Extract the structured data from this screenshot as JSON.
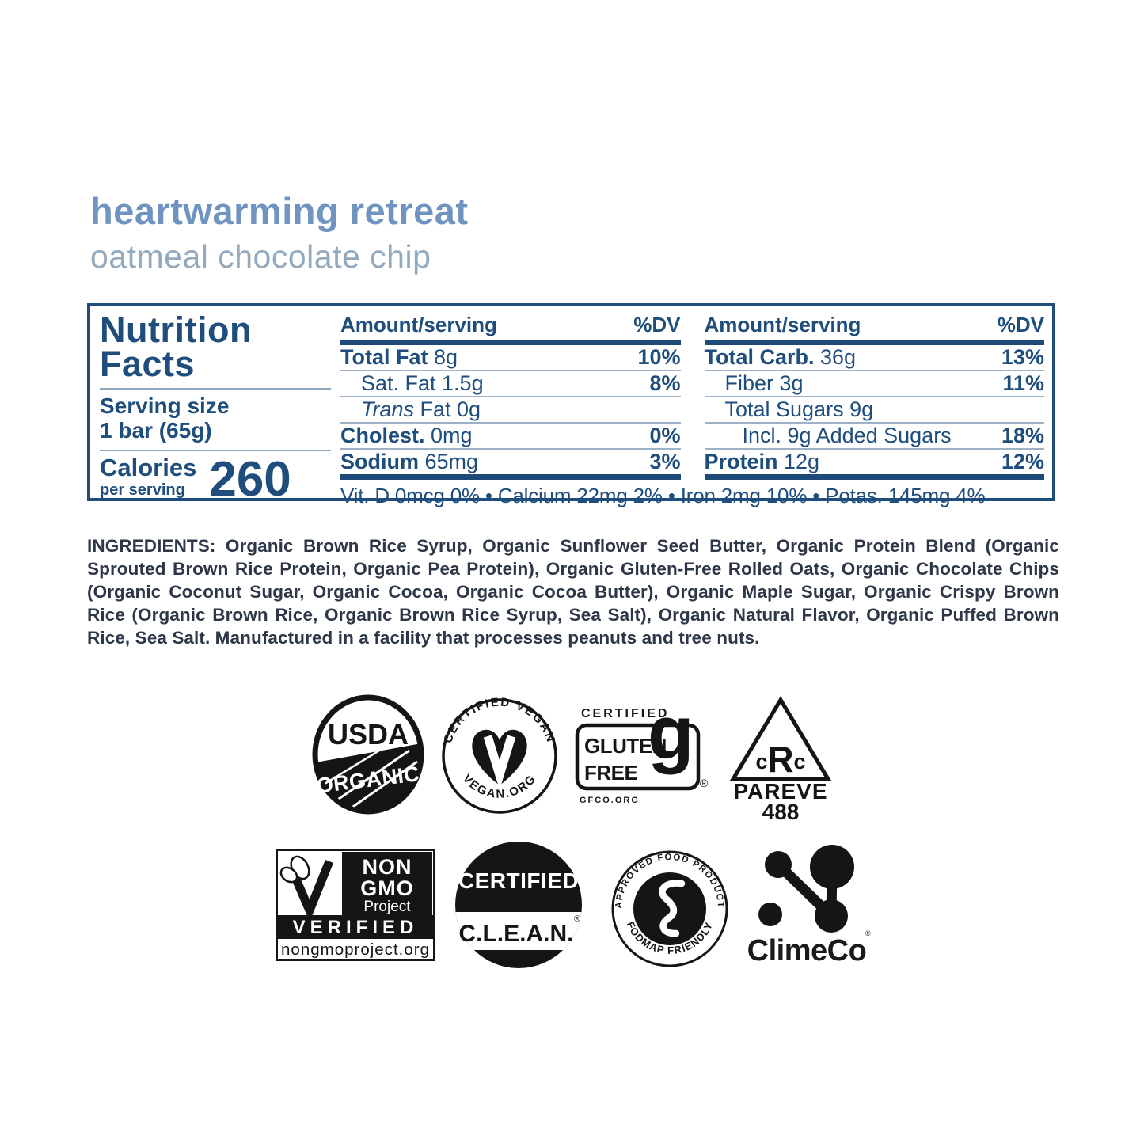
{
  "header": {
    "title": "heartwarming retreat",
    "subtitle": "oatmeal chocolate chip"
  },
  "colors": {
    "panel_blue": "#1f4e7d",
    "title_blue": "#6f94c1",
    "subtitle_blue": "#93a9bd",
    "ingredients_ink": "#2d3747",
    "badge_black": "#151515"
  },
  "nutrition_facts": {
    "panel_title_line1": "Nutrition",
    "panel_title_line2": "Facts",
    "serving_size_label": "Serving size",
    "serving_size_value": "1 bar (65g)",
    "calories_label": "Calories",
    "calories_sublabel": "per serving",
    "calories_value": "260",
    "columns": [
      {
        "header_amount": "Amount/serving",
        "header_dv": "%DV",
        "rows": [
          {
            "parts": [
              {
                "t": "Total Fat",
                "b": true
              },
              {
                "t": " 8g"
              }
            ],
            "dv": "10%",
            "indent": 0
          },
          {
            "parts": [
              {
                "t": "Sat. Fat 1.5g"
              }
            ],
            "dv": "8%",
            "indent": 1
          },
          {
            "parts": [
              {
                "t": "Trans",
                "i": true
              },
              {
                "t": " Fat 0g"
              }
            ],
            "dv": "",
            "indent": 1
          },
          {
            "parts": [
              {
                "t": "Cholest.",
                "b": true
              },
              {
                "t": " 0mg"
              }
            ],
            "dv": "0%",
            "indent": 0
          },
          {
            "parts": [
              {
                "t": "Sodium",
                "b": true
              },
              {
                "t": " 65mg"
              }
            ],
            "dv": "3%",
            "indent": 0
          }
        ]
      },
      {
        "header_amount": "Amount/serving",
        "header_dv": "%DV",
        "rows": [
          {
            "parts": [
              {
                "t": "Total Carb.",
                "b": true
              },
              {
                "t": " 36g"
              }
            ],
            "dv": "13%",
            "indent": 0
          },
          {
            "parts": [
              {
                "t": "Fiber 3g"
              }
            ],
            "dv": "11%",
            "indent": 1
          },
          {
            "parts": [
              {
                "t": "Total Sugars 9g"
              }
            ],
            "dv": "",
            "indent": 1
          },
          {
            "parts": [
              {
                "t": "Incl. 9g Added Sugars"
              }
            ],
            "dv": "18%",
            "indent": 2
          },
          {
            "parts": [
              {
                "t": "Protein",
                "b": true
              },
              {
                "t": " 12g"
              }
            ],
            "dv": "12%",
            "indent": 0
          }
        ]
      }
    ],
    "micronutrients": "Vit. D 0mcg 0% • Calcium 22mg 2% • Iron 2mg 10% • Potas. 145mg 4%"
  },
  "ingredients": {
    "label": "INGREDIENTS:",
    "text": " Organic Brown Rice Syrup, Organic Sunflower Seed Butter, Organic Protein Blend (Organic Sprouted Brown Rice Protein, Organic Pea Protein), Organic Gluten-Free Rolled Oats, Organic Chocolate Chips (Organic Coconut Sugar, Organic Cocoa, Organic Cocoa Butter), Organic Maple Sugar, Organic Crispy Brown Rice (Organic Brown Rice, Organic Brown Rice Syrup, Sea Salt), Organic Natural Flavor, Organic Puffed Brown Rice, Sea Salt. Manufactured in a facility that processes peanuts and tree nuts."
  },
  "badges": {
    "usda": {
      "line1": "USDA",
      "line2": "ORGANIC"
    },
    "vegan": {
      "top": "CERTIFIED VEGAN",
      "bottom": "VEGAN.ORG"
    },
    "gluten_free": {
      "certified": "CERTIFIED",
      "line1": "GLUTEN",
      "line2": "FREE",
      "g": "g",
      "reg": "®",
      "org": "GFCO.ORG"
    },
    "crc": {
      "c1": "c",
      "r": "R",
      "c2": "c",
      "pareve": "PAREVE",
      "number": "488"
    },
    "non_gmo": {
      "line1": "NON",
      "line2": "GMO",
      "line3": "Project",
      "verified": "VERIFIED",
      "url": "nongmoproject.org"
    },
    "clean": {
      "certified": "CERTIFIED",
      "name": "C.L.E.A.N.",
      "reg": "®"
    },
    "fodmap": {
      "top": "APPROVED FOOD PRODUCT",
      "bottom": "FODMAP FRIENDLY"
    },
    "climeco": {
      "name": "ClimeCo",
      "reg": "®"
    }
  }
}
